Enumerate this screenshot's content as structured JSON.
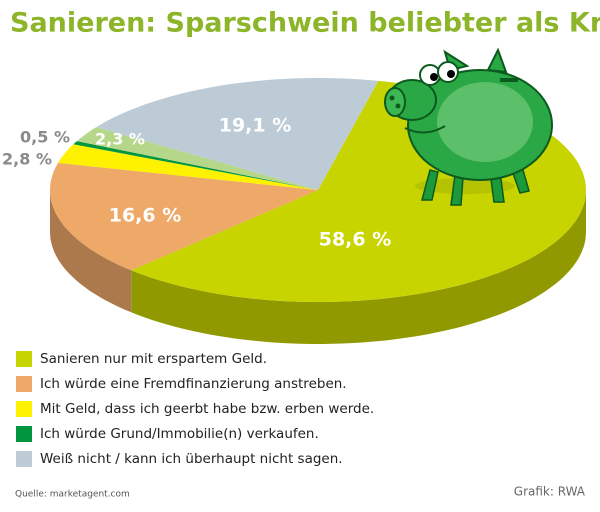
{
  "chart_data": {
    "type": "pie",
    "title": "Sanieren: Sparschwein beliebter als Kredite",
    "categories": [
      "Sanieren nur mit erspartem Geld.",
      "Ich würde eine Fremdfinanzierung anstreben.",
      "Mit Geld, dass ich geerbt habe bzw. erben werde.",
      "Ich würde Grund/Immobilie(n) verkaufen.",
      null,
      "Weiß nicht / kann ich überhaupt nicht sagen."
    ],
    "values": [
      58.6,
      16.6,
      2.8,
      0.5,
      2.3,
      19.1
    ],
    "value_labels": [
      "58,6 %",
      "16,6 %",
      "2,8 %",
      "0,5 %",
      "2,3 %",
      "19,1 %"
    ],
    "colors": [
      "#c8d400",
      "#eea868",
      "#fff200",
      "#00963f",
      "#b5d78a",
      "#bccbd6"
    ],
    "source": "Quelle: marketagent.com",
    "credit": "Grafik: RWA"
  }
}
